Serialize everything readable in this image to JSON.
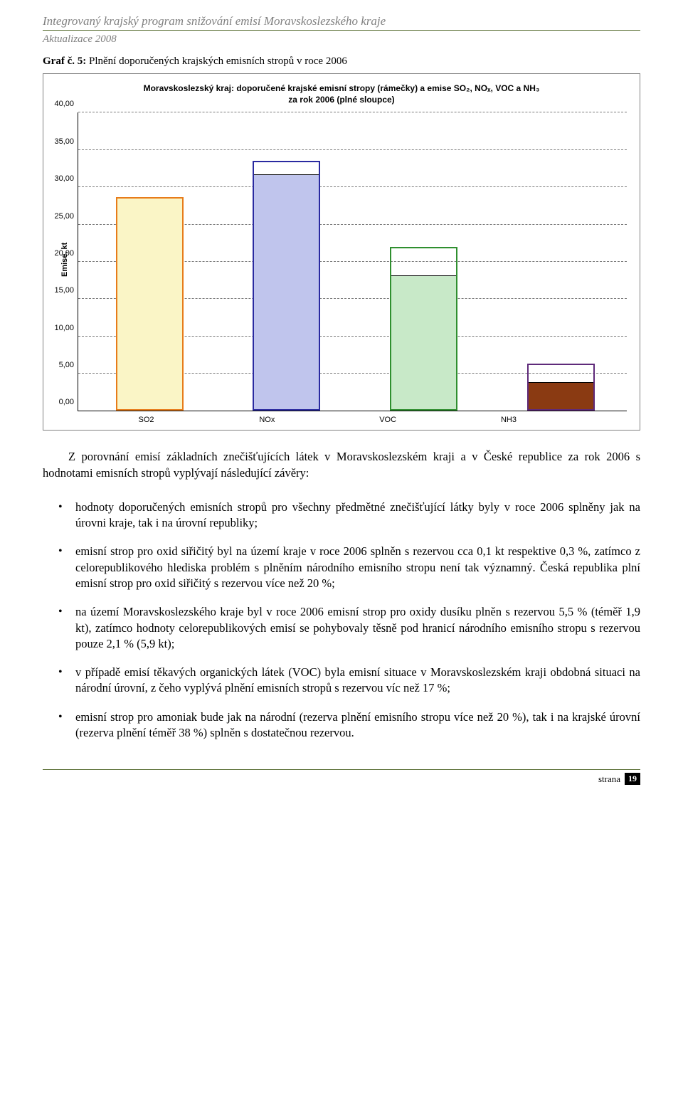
{
  "header": {
    "title": "Integrovaný krajský program snižování emisí Moravskoslezského kraje",
    "subtitle": "Aktualizace 2008"
  },
  "caption": {
    "label": "Graf č. 5:",
    "text": "Plnění doporučených krajských emisních stropů v roce 2006"
  },
  "chart": {
    "type": "bar",
    "title_line1": "Moravskoslezský kraj: doporučené krajské emisní stropy (rámečky) a emise  SO₂, NOₓ, VOC a NH₃",
    "title_line2": "za rok 2006 (plné sloupce)",
    "ylabel": "Emise, kt",
    "ylim_max": 40,
    "ylim_min": 0,
    "yticks": [
      "0,00",
      "5,00",
      "10,00",
      "15,00",
      "20,00",
      "25,00",
      "30,00",
      "35,00",
      "40,00"
    ],
    "ytick_values": [
      0,
      5,
      10,
      15,
      20,
      25,
      30,
      35,
      40
    ],
    "grid_color": "#7a7a7a",
    "background_color": "#ffffff",
    "categories": [
      {
        "name": "SO2",
        "value": 28.6,
        "frame": 28.7,
        "fill_color": "#faf5c6",
        "frame_color": "#e77c1a"
      },
      {
        "name": "NOx",
        "value": 31.7,
        "frame": 33.5,
        "fill_color": "#c0c5ed",
        "frame_color": "#2a2aa0"
      },
      {
        "name": "VOC",
        "value": 18.2,
        "frame": 22.0,
        "fill_color": "#c8e9c8",
        "frame_color": "#2f8f2f"
      },
      {
        "name": "NH3",
        "value": 3.9,
        "frame": 6.3,
        "fill_color": "#8a3a12",
        "frame_color": "#5f2a7a"
      }
    ],
    "title_fontsize": 12,
    "label_fontsize": 11
  },
  "intro": "Z porovnání emisí základních znečišťujících látek v Moravskoslezském kraji a v České republice za rok 2006 s hodnotami emisních stropů vyplývají následující závěry:",
  "bullets": {
    "b1": "hodnoty doporučených emisních stropů pro všechny předmětné znečišťující látky byly v roce 2006 splněny jak na úrovni kraje, tak i na úrovní republiky;",
    "b2": "emisní strop pro oxid siřičitý byl na území kraje v roce 2006 splněn s rezervou cca 0,1 kt respektive 0,3 %, zatímco z celorepublikového hlediska problém s plněním národního emisního stropu není tak významný. Česká republika plní emisní strop pro oxid siřičitý s rezervou více než 20 %;",
    "b3": "na území Moravskoslezského kraje byl v roce 2006 emisní strop pro oxidy dusíku plněn s rezervou 5,5 % (téměř 1,9 kt), zatímco hodnoty celorepublikových emisí se pohybovaly těsně pod hranicí národního emisního stropu s rezervou pouze 2,1 % (5,9 kt);",
    "b4": "v případě emisí těkavých organických látek (VOC) byla emisní situace v Moravskoslezském kraji obdobná situaci na národní úrovní, z čeho vyplývá plnění emisních stropů s rezervou víc než 17 %;",
    "b5": "emisní strop pro amoniak bude jak na národní (rezerva plnění emisního stropu více než 20 %), tak i na krajské úrovní (rezerva plnění téměř 38 %) splněn s dostatečnou rezervou."
  },
  "footer": {
    "label": "strana",
    "page": "19"
  }
}
